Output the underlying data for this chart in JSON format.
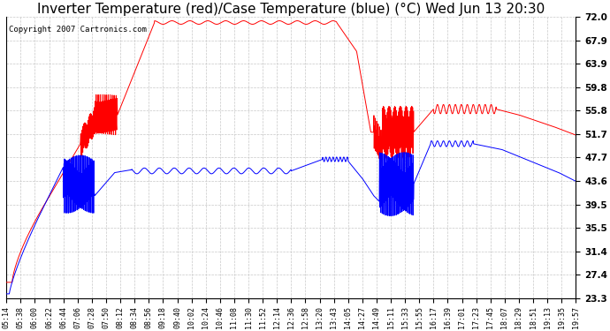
{
  "title": "Inverter Temperature (red)/Case Temperature (blue) (°C) Wed Jun 13 20:30",
  "copyright": "Copyright 2007 Cartronics.com",
  "yticks": [
    23.3,
    27.4,
    31.4,
    35.5,
    39.5,
    43.6,
    47.7,
    51.7,
    55.8,
    59.8,
    63.9,
    67.9,
    72.0
  ],
  "ylim": [
    23.3,
    72.0
  ],
  "background_color": "#ffffff",
  "grid_color": "#c8c8c8",
  "red_color": "#ff0000",
  "blue_color": "#0000ff",
  "title_fontsize": 11,
  "copyright_fontsize": 6.5,
  "xtick_labels": [
    "05:14",
    "05:38",
    "06:00",
    "06:22",
    "06:44",
    "07:06",
    "07:28",
    "07:50",
    "08:12",
    "08:34",
    "08:56",
    "09:18",
    "09:40",
    "10:02",
    "10:24",
    "10:46",
    "11:08",
    "11:30",
    "11:52",
    "12:14",
    "12:36",
    "12:58",
    "13:20",
    "13:43",
    "14:05",
    "14:27",
    "14:49",
    "15:11",
    "15:33",
    "15:55",
    "16:17",
    "16:39",
    "17:01",
    "17:23",
    "17:45",
    "18:07",
    "18:29",
    "18:51",
    "19:13",
    "19:35",
    "19:57"
  ]
}
